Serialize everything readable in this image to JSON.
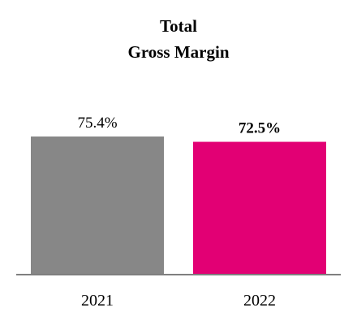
{
  "chart_data": {
    "type": "bar",
    "title_lines": [
      "Total",
      "Gross Margin"
    ],
    "categories": [
      "2021",
      "2022"
    ],
    "values": [
      75.4,
      72.5
    ],
    "data_labels": [
      "75.4%",
      "72.5%"
    ],
    "bar_colors": [
      "#878787",
      "#E20074"
    ],
    "bold_labels": [
      false,
      true
    ],
    "xlabel": "",
    "ylabel": "",
    "grid": false,
    "legend": "none"
  }
}
